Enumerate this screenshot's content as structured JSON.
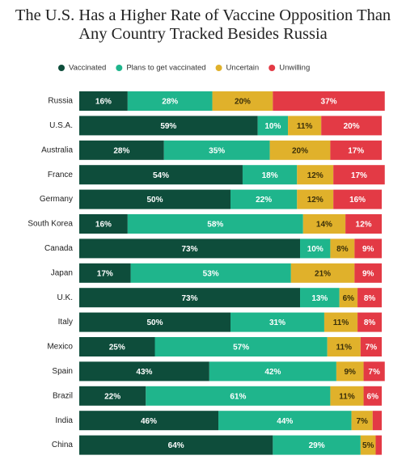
{
  "chart_data": {
    "type": "stacked-bar-horizontal",
    "title": "The U.S. Has a Higher Rate of Vaccine Opposition Than Any Country Tracked Besides Russia",
    "categories": [
      "Russia",
      "U.S.A.",
      "Australia",
      "France",
      "Germany",
      "South Korea",
      "Canada",
      "Japan",
      "U.K.",
      "Italy",
      "Mexico",
      "Spain",
      "Brazil",
      "India",
      "China"
    ],
    "xlim": [
      0,
      100
    ],
    "series": [
      {
        "name": "Vaccinated",
        "color": "#0e4d3b",
        "values": [
          16,
          59,
          28,
          54,
          50,
          16,
          73,
          17,
          73,
          50,
          25,
          43,
          22,
          46,
          64
        ],
        "value_labels": [
          "16%",
          "59%",
          "28%",
          "54%",
          "50%",
          "16%",
          "73%",
          "17%",
          "73%",
          "50%",
          "25%",
          "43%",
          "22%",
          "46%",
          "64%"
        ]
      },
      {
        "name": "Plans to get vaccinated",
        "color": "#1fb58c",
        "values": [
          28,
          10,
          35,
          18,
          22,
          58,
          10,
          53,
          13,
          31,
          57,
          42,
          61,
          44,
          29
        ],
        "value_labels": [
          "28%",
          "10%",
          "35%",
          "18%",
          "22%",
          "58%",
          "10%",
          "53%",
          "13%",
          "31%",
          "57%",
          "42%",
          "61%",
          "44%",
          "29%"
        ]
      },
      {
        "name": "Uncertain",
        "color": "#e0b12b",
        "values": [
          20,
          11,
          20,
          12,
          12,
          14,
          8,
          21,
          6,
          11,
          11,
          9,
          11,
          7,
          5
        ],
        "value_labels": [
          "20%",
          "11%",
          "20%",
          "12%",
          "12%",
          "14%",
          "8%",
          "21%",
          "6%",
          "11%",
          "11%",
          "9%",
          "11%",
          "7%",
          "5%"
        ]
      },
      {
        "name": "Unwilling",
        "color": "#e33a45",
        "values": [
          37,
          20,
          17,
          17,
          16,
          12,
          9,
          9,
          8,
          8,
          7,
          7,
          6,
          3,
          2
        ],
        "value_labels": [
          "37%",
          "20%",
          "17%",
          "17%",
          "16%",
          "12%",
          "9%",
          "9%",
          "8%",
          "8%",
          "7%",
          "7%",
          "6%",
          null,
          null
        ]
      }
    ]
  }
}
